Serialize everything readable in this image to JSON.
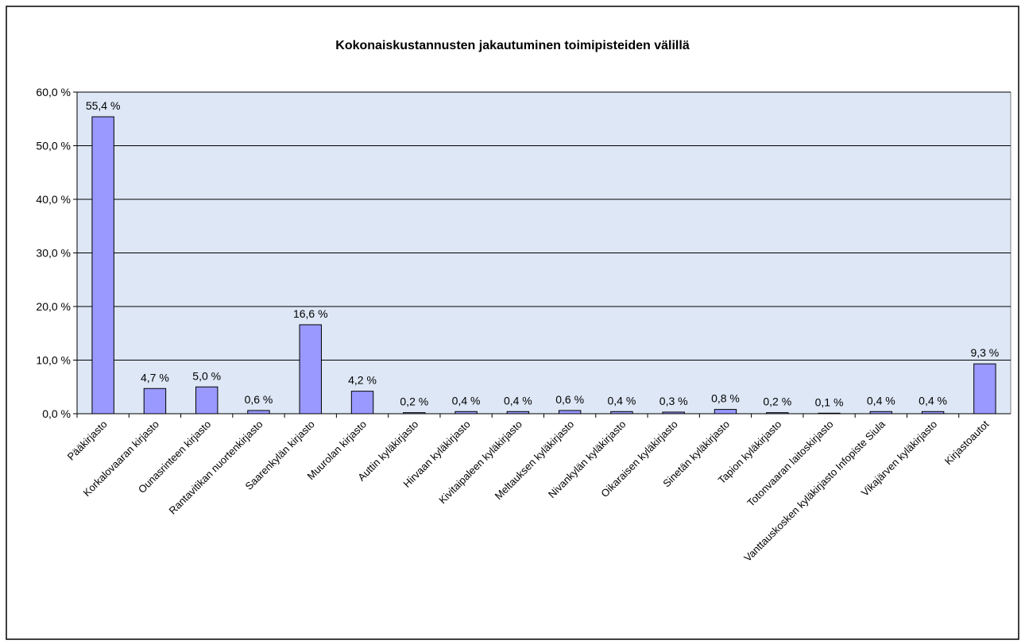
{
  "chart_data": {
    "type": "bar",
    "title": "Kokonaiskustannusten jakautuminen toimipisteiden välillä",
    "categories": [
      "Pääkirjasto",
      "Korkalovaaran kirjasto",
      "Ounasrinteen kirjasto",
      "Rantavitikan nuortenkirjasto",
      "Saarenkylän kirjasto",
      "Muurolan kirjasto",
      "Auttin kyläkirjasto",
      "Hirvaan kyläkirjasto",
      "Kivitaipaleen kyläkirjasto",
      "Meltauksen kyläkirjasto",
      "Nivankylän kyläkirjasto",
      "Oikaraisen kyläkirjasto",
      "Sinetän kyläkirjasto",
      "Tapion kyläkirjasto",
      "Totonvaaran laitoskirjasto",
      "Vanttauskosken kyläkirjasto Infopiste Siula",
      "Vikajärven kyläkirjasto",
      "Kirjastoautot"
    ],
    "values": [
      55.4,
      4.7,
      5.0,
      0.6,
      16.6,
      4.2,
      0.2,
      0.4,
      0.4,
      0.6,
      0.4,
      0.3,
      0.8,
      0.2,
      0.1,
      0.4,
      0.4,
      9.3
    ],
    "value_labels": [
      "55,4 %",
      "4,7 %",
      "5,0 %",
      "0,6 %",
      "16,6 %",
      "4,2 %",
      "0,2 %",
      "0,4 %",
      "0,4 %",
      "0,6 %",
      "0,4 %",
      "0,3 %",
      "0,8 %",
      "0,2 %",
      "0,1 %",
      "0,4 %",
      "0,4 %",
      "9,3 %"
    ],
    "color": "#9999ff",
    "ylim": [
      0,
      60
    ],
    "yticks": [
      {
        "value": 0,
        "label": "0,0 %"
      },
      {
        "value": 10,
        "label": "10,0 %"
      },
      {
        "value": 20,
        "label": "20,0 %"
      },
      {
        "value": 30,
        "label": "30,0 %"
      },
      {
        "value": 40,
        "label": "40,0 %"
      },
      {
        "value": 50,
        "label": "50,0 %"
      },
      {
        "value": 60,
        "label": "60,0 %"
      }
    ],
    "grid": true
  }
}
